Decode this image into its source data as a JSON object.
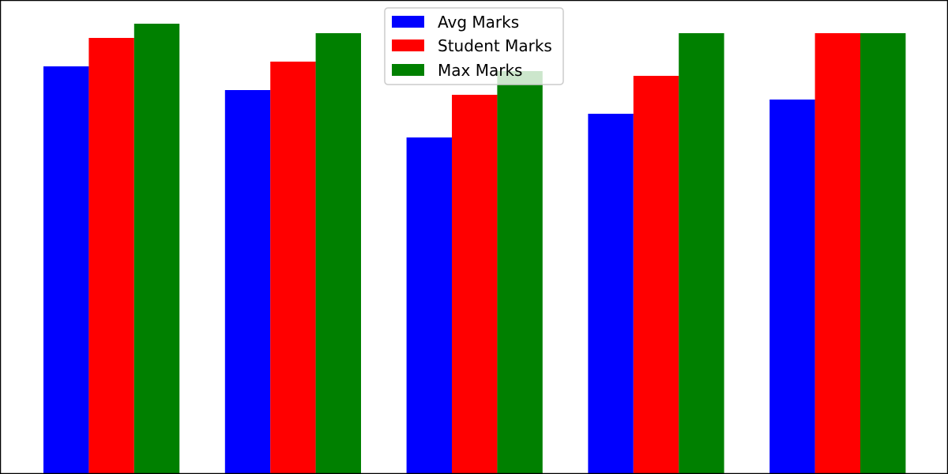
{
  "chart_data": {
    "type": "bar",
    "categories": [
      "",
      "",
      "",
      "",
      ""
    ],
    "series": [
      {
        "name": "Avg Marks",
        "color": "#0000ff",
        "values": [
          86,
          81,
          71,
          76,
          79
        ]
      },
      {
        "name": "Student Marks",
        "color": "#ff0000",
        "values": [
          92,
          87,
          80,
          84,
          93
        ]
      },
      {
        "name": "Max Marks",
        "color": "#008000",
        "values": [
          95,
          93,
          85,
          93,
          93
        ]
      }
    ],
    "ylim": [
      0,
      100
    ],
    "grid": false,
    "legend_placement": "top-center"
  }
}
